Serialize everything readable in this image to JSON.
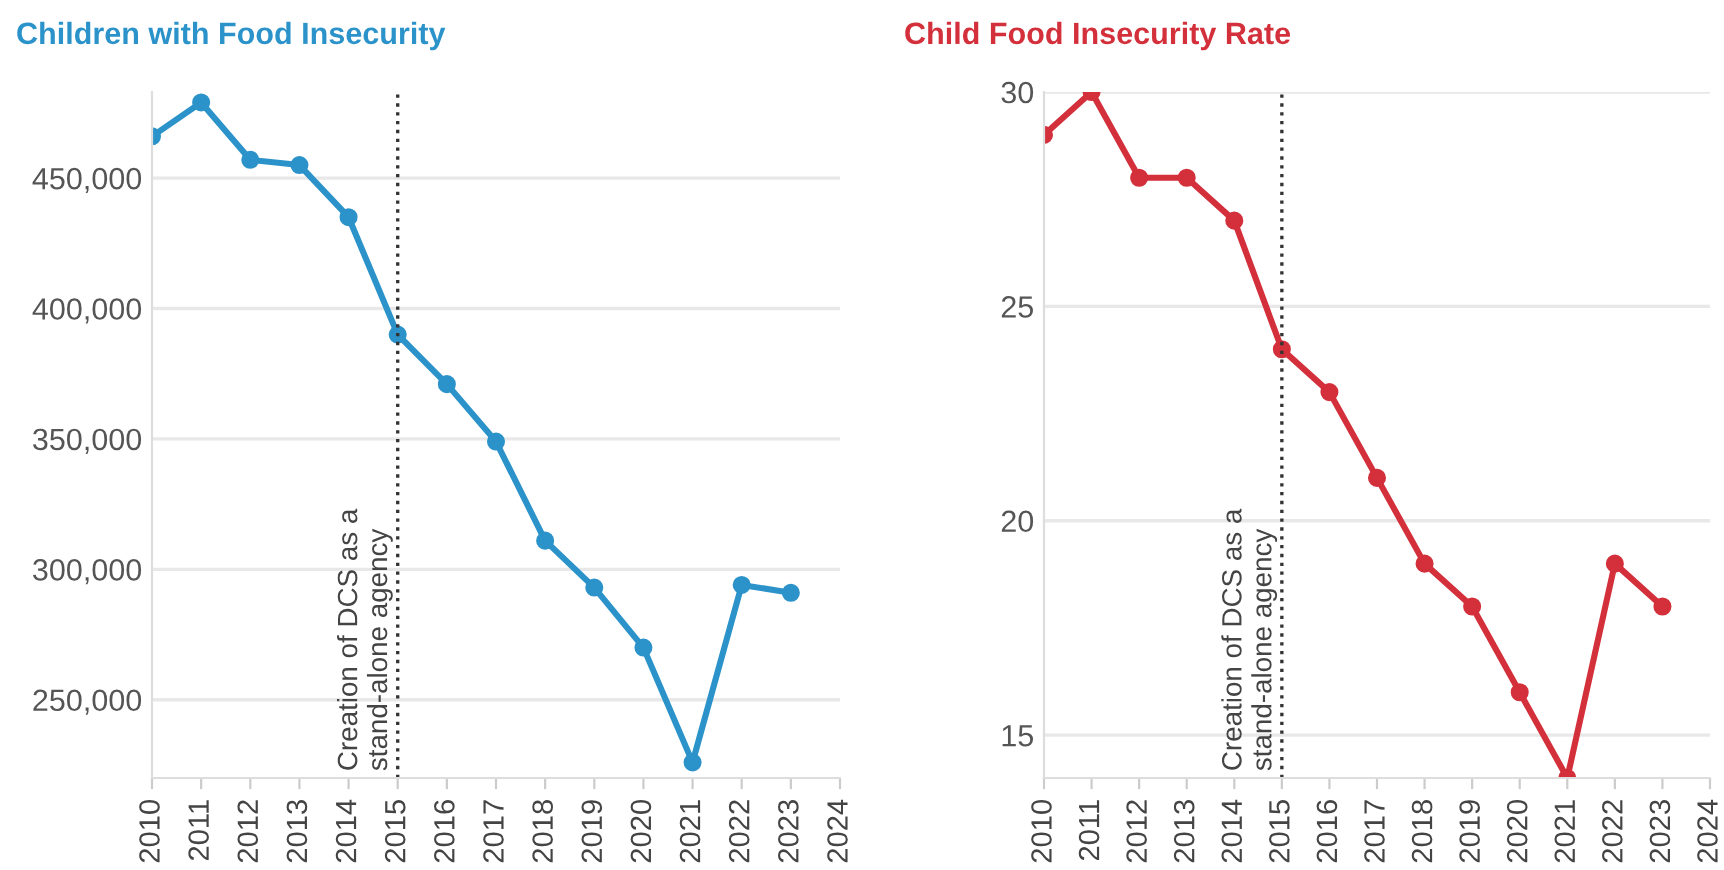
{
  "chart_data": [
    {
      "type": "line",
      "title": "Children with Food Insecurity",
      "x": [
        2010,
        2011,
        2012,
        2013,
        2014,
        2015,
        2016,
        2017,
        2018,
        2019,
        2020,
        2021,
        2022,
        2023
      ],
      "series": [
        {
          "color": "#2b93c9",
          "values": [
            466000,
            479000,
            457000,
            455000,
            435000,
            390000,
            371000,
            349000,
            311000,
            293000,
            270000,
            226000,
            294000,
            291000
          ]
        }
      ],
      "xlim": [
        2010,
        2024
      ],
      "xticks": [
        2010,
        2011,
        2012,
        2013,
        2014,
        2015,
        2016,
        2017,
        2018,
        2019,
        2020,
        2021,
        2022,
        2023,
        2024
      ],
      "ylim": [
        220000,
        483000
      ],
      "yticks": [
        {
          "value": 250000,
          "label": "250,000"
        },
        {
          "value": 300000,
          "label": "300,000"
        },
        {
          "value": 350000,
          "label": "350,000"
        },
        {
          "value": 400000,
          "label": "400,000"
        },
        {
          "value": 450000,
          "label": "450,000"
        }
      ],
      "grid": "y",
      "marker": "circle",
      "line_style": "solid",
      "ref_lines": [
        {
          "axis": "x",
          "value": 2015,
          "label": "Creation of DCS as a\nstand-alone agency",
          "color": "#333333",
          "line_style": "dotted"
        }
      ]
    },
    {
      "type": "line",
      "title": "Child Food Insecurity Rate",
      "x": [
        2010,
        2011,
        2012,
        2013,
        2014,
        2015,
        2016,
        2017,
        2018,
        2019,
        2020,
        2021,
        2022,
        2023
      ],
      "series": [
        {
          "color": "#d3303b",
          "values": [
            29,
            30,
            28,
            28,
            27,
            24,
            23,
            21,
            19,
            18,
            16,
            14,
            19,
            18
          ]
        }
      ],
      "xlim": [
        2010,
        2024
      ],
      "xticks": [
        2010,
        2011,
        2012,
        2013,
        2014,
        2015,
        2016,
        2017,
        2018,
        2019,
        2020,
        2021,
        2022,
        2023,
        2024
      ],
      "ylim": [
        14,
        30
      ],
      "yticks": [
        15,
        20,
        25,
        30
      ],
      "grid": "y",
      "marker": "circle",
      "line_style": "solid",
      "ref_lines": [
        {
          "axis": "x",
          "value": 2015,
          "label": "Creation of DCS as a\nstand-alone agency",
          "color": "#333333",
          "line_style": "dotted"
        }
      ]
    }
  ]
}
